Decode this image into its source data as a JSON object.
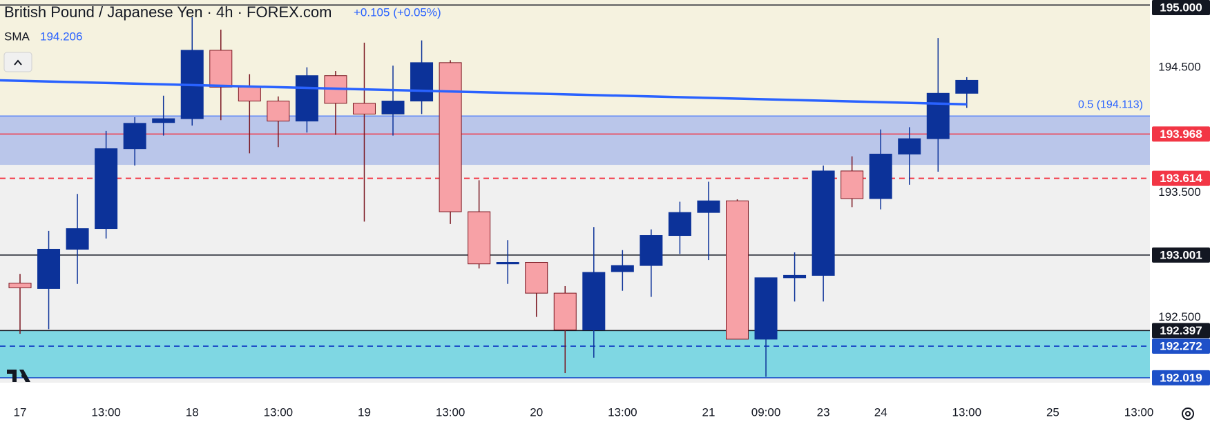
{
  "chart_data": {
    "type": "candlestick",
    "title": "British Pound / Japanese Yen · 4h · FOREX.com",
    "change": "+0.105 (+0.05%)",
    "up_color": "#0c3299",
    "down_color": "#f7a1a6",
    "down_wick_color": "#7a1620",
    "categories": [
      "17",
      null,
      null,
      "13:00",
      null,
      null,
      "18",
      null,
      null,
      "13:00",
      null,
      null,
      "19",
      null,
      null,
      "13:00",
      null,
      null,
      "20",
      null,
      null,
      "13:00",
      null,
      null,
      "21",
      null,
      "09:00",
      null,
      "23",
      null,
      "24",
      null,
      null,
      "13:00",
      null,
      null,
      "25",
      null,
      null,
      "13:00"
    ],
    "open": [
      192.776,
      192.733,
      193.047,
      193.212,
      193.851,
      194.06,
      194.091,
      194.638,
      194.343,
      194.232,
      194.072,
      194.435,
      194.214,
      194.128,
      194.232,
      194.539,
      193.347,
      192.93,
      192.942,
      192.696,
      192.402,
      192.868,
      192.917,
      193.157,
      193.341,
      193.434,
      192.328,
      192.819,
      192.838,
      193.673,
      193.452,
      193.808,
      193.931,
      194.294,
      null,
      null,
      null,
      null,
      null,
      null
    ],
    "high": [
      192.85,
      193.194,
      193.489,
      193.993,
      194.103,
      194.275,
      194.902,
      194.803,
      194.447,
      194.269,
      194.502,
      194.472,
      194.699,
      194.515,
      194.717,
      194.558,
      193.599,
      193.12,
      192.942,
      192.752,
      193.225,
      193.04,
      193.206,
      193.427,
      193.587,
      193.446,
      192.819,
      193.022,
      193.716,
      193.79,
      194.005,
      194.023,
      194.736,
      194.423,
      null,
      null,
      null,
      null,
      null,
      null
    ],
    "low": [
      192.371,
      192.408,
      192.77,
      193.133,
      193.716,
      193.956,
      194.036,
      194.079,
      193.814,
      193.864,
      193.98,
      193.962,
      193.268,
      193.956,
      194.128,
      193.249,
      192.893,
      192.77,
      192.506,
      192.057,
      192.18,
      192.715,
      192.666,
      193.01,
      192.961,
      192.328,
      192.027,
      192.629,
      192.629,
      193.384,
      193.366,
      193.563,
      193.667,
      194.177,
      null,
      null,
      null,
      null,
      null,
      null
    ],
    "close": [
      192.739,
      193.047,
      193.212,
      193.851,
      194.054,
      194.091,
      194.638,
      194.343,
      194.232,
      194.072,
      194.435,
      194.214,
      194.128,
      194.232,
      194.539,
      193.347,
      192.93,
      192.942,
      192.696,
      192.402,
      192.862,
      192.917,
      193.157,
      193.341,
      193.434,
      192.328,
      192.819,
      192.838,
      193.673,
      193.452,
      193.808,
      193.931,
      194.294,
      194.398,
      null,
      null,
      null,
      null,
      null,
      null
    ],
    "sma": {
      "name": "SMA",
      "value": 194.206,
      "color": "#2962ff",
      "x": [
        -0.7,
        33
      ],
      "values": [
        194.398,
        194.206
      ]
    },
    "ylim": [
      191.98,
      195.04
    ],
    "yticks": [
      {
        "value": 194.5,
        "label": "194.500"
      },
      {
        "value": 193.5,
        "label": "193.500"
      },
      {
        "value": 192.5,
        "label": "192.500"
      }
    ],
    "zones": [
      {
        "from": 194.113,
        "color": "#f5f2df"
      },
      {
        "from": 193.722,
        "to": 194.113,
        "color": "#bac6ea"
      },
      {
        "from": 192.019,
        "to": 192.397,
        "color": "#7fd7e3"
      }
    ],
    "fib": {
      "value": 194.113,
      "label": "0.5 (194.113)",
      "color": "#2962ff"
    },
    "levels": [
      {
        "value": 195.0,
        "label": "195.000",
        "color": "#131722",
        "style": "solid"
      },
      {
        "value": 193.968,
        "label": "193.968",
        "color": "#f23645",
        "style": "solid"
      },
      {
        "value": 193.614,
        "label": "193.614",
        "color": "#f23645",
        "style": "dashed"
      },
      {
        "value": 193.001,
        "label": "193.001",
        "color": "#131722",
        "style": "solid"
      },
      {
        "value": 192.397,
        "label": "192.397",
        "color": "#131722",
        "style": "solid"
      },
      {
        "value": 192.272,
        "label": "192.272",
        "color": "#1e50c8",
        "style": "dashed"
      },
      {
        "value": 192.019,
        "label": "192.019",
        "color": "#1e50c8",
        "style": "solid"
      }
    ]
  }
}
